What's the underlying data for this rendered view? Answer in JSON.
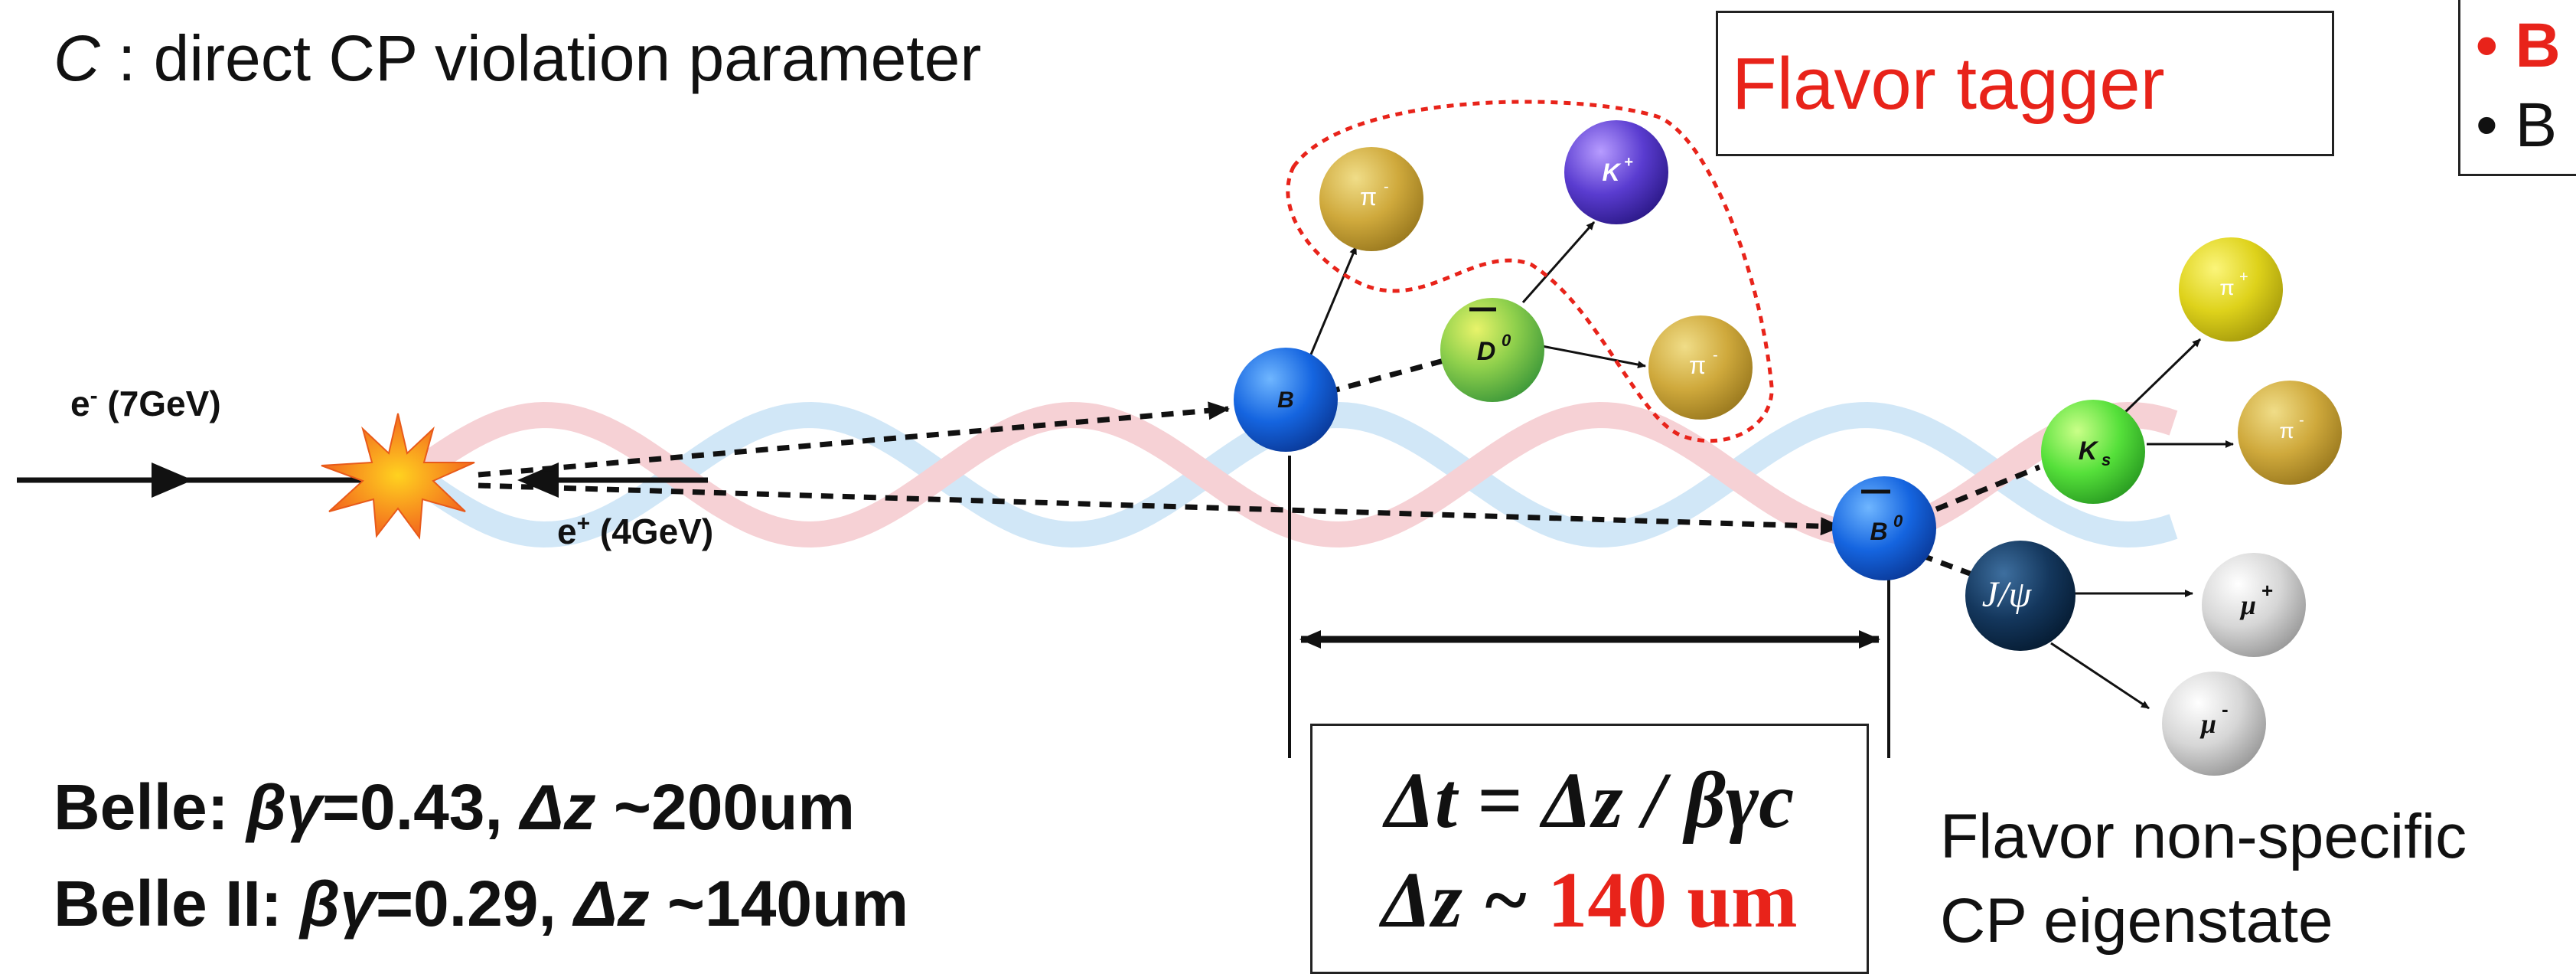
{
  "header": {
    "c_symbol": "C",
    "c_description": " : direct CP violation parameter"
  },
  "flavor_tagger": {
    "label": "Flavor tagger"
  },
  "legend_fragment": {
    "bullet_1": "• B",
    "bullet_2": "• B"
  },
  "beams": {
    "electron": {
      "symbol": "e",
      "sup": "-",
      "energy": " (7GeV)"
    },
    "positron": {
      "symbol": "e",
      "sup": "+",
      "energy": " (4GeV)"
    }
  },
  "particles": {
    "b": "B",
    "d0": "D",
    "d0_sup": "0",
    "kplus": "K",
    "kplus_sup": "+",
    "pi_minus_1": "π",
    "pi_minus_1_sup": "-",
    "pi_minus_2": "π",
    "pi_minus_2_sup": "-",
    "b0bar": "B",
    "b0bar_sup": "0",
    "ks": "K",
    "ks_sub": "s",
    "pi_plus": "π",
    "pi_plus_sup": "+",
    "pi_minus_3": "π",
    "pi_minus_3_sup": "-",
    "jpsi": "J/ψ",
    "mu_plus": "μ",
    "mu_plus_sup": "+",
    "mu_minus": "μ",
    "mu_minus_sup": "-"
  },
  "experiments": {
    "belle": {
      "name": "Belle: ",
      "bg_sym": "βγ",
      "bg_val": "=0.43, ",
      "dz_sym": "Δz",
      "dz_val": " ~200um"
    },
    "belle2": {
      "name": "Belle II: ",
      "bg_sym": "βγ",
      "bg_val": "=0.29, ",
      "dz_sym": "Δz",
      "dz_val": " ~140um"
    }
  },
  "formula": {
    "line1": "Δt = Δz / βγc",
    "line2_prefix": "Δz ~ ",
    "line2_value": "140 um",
    "value_color": "#e8231a"
  },
  "cp_state": {
    "line1": "Flavor non-specific",
    "line2": "CP eigenstate"
  },
  "colors": {
    "accent_red": "#e8231a",
    "wave_blue": "#cfe6f7",
    "wave_red": "#f6cfd3"
  }
}
